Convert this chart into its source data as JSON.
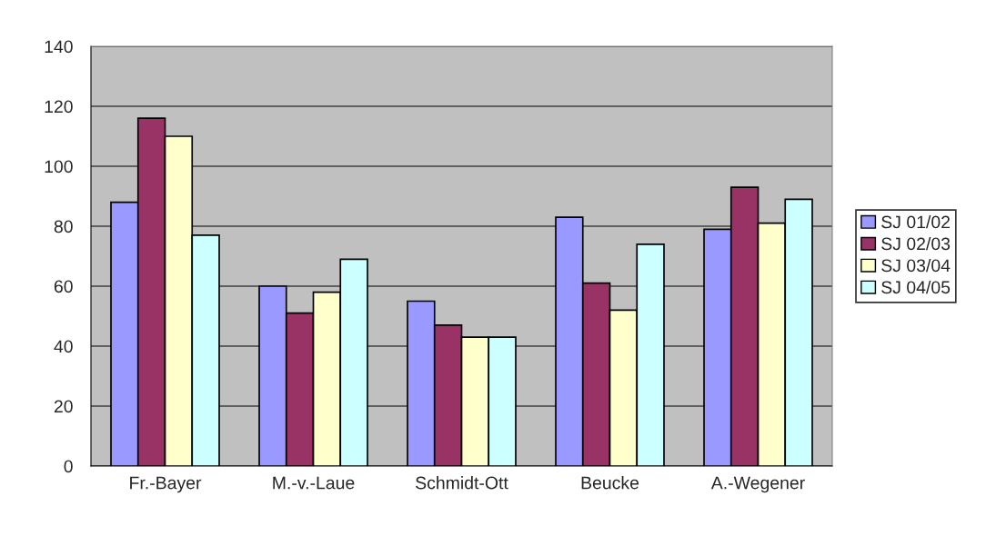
{
  "chart_data": {
    "type": "bar",
    "categories": [
      "Fr.-Bayer",
      "M.-v.-Laue",
      "Schmidt-Ott",
      "Beucke",
      "A.-Wegener"
    ],
    "series": [
      {
        "name": "SJ 01/02",
        "color": "#9999ff",
        "values": [
          88,
          60,
          55,
          83,
          79
        ]
      },
      {
        "name": "SJ 02/03",
        "color": "#993366",
        "values": [
          116,
          51,
          47,
          61,
          93
        ]
      },
      {
        "name": "SJ 03/04",
        "color": "#ffffcc",
        "values": [
          110,
          58,
          43,
          52,
          81
        ]
      },
      {
        "name": "SJ 04/05",
        "color": "#ccffff",
        "values": [
          77,
          69,
          43,
          74,
          89
        ]
      }
    ],
    "ylim": [
      0,
      140
    ],
    "yticks": [
      0,
      20,
      40,
      60,
      80,
      100,
      120,
      140
    ],
    "grid": "y",
    "legend": "right"
  }
}
